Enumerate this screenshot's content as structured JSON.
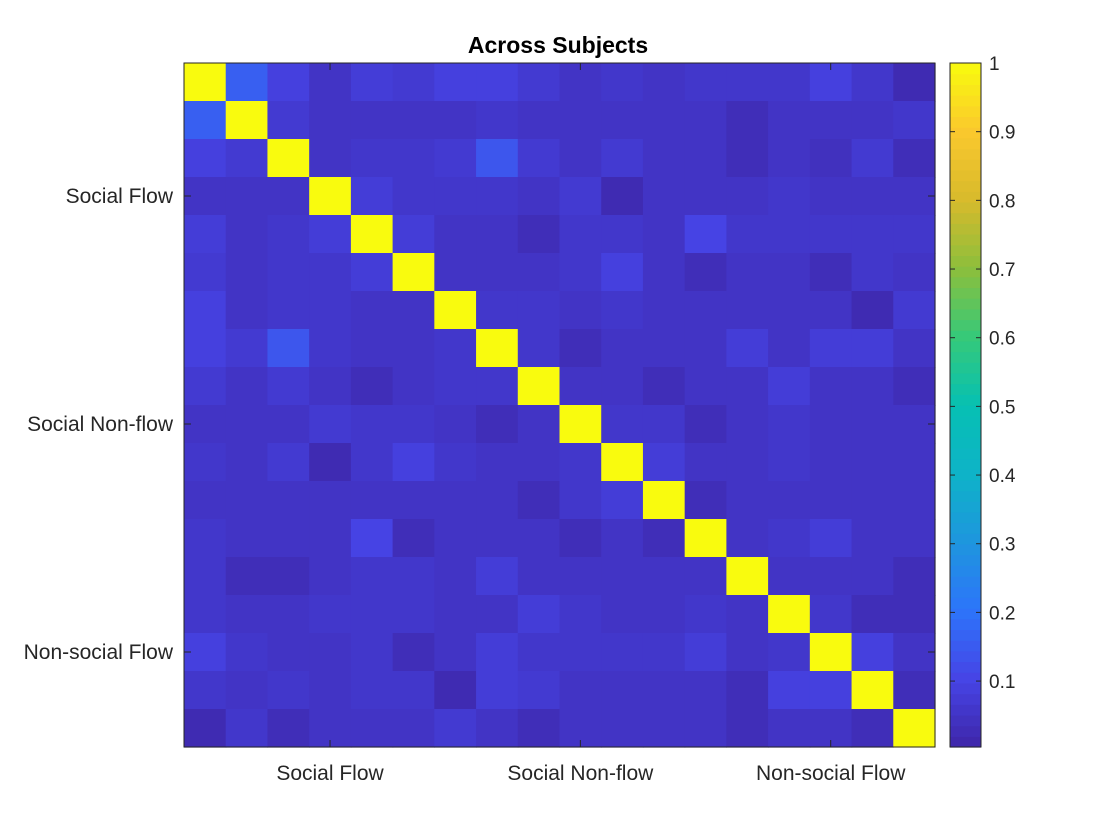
{
  "chart_data": {
    "type": "heatmap",
    "title": "Across Subjects",
    "n": 18,
    "x_tick_labels": [
      "Social Flow",
      "Social Non-flow",
      "Non-social Flow"
    ],
    "y_tick_labels": [
      "Social Flow",
      "Social Non-flow",
      "Non-social Flow"
    ],
    "tick_positions": [
      3.5,
      9.5,
      15.5
    ],
    "colormap": "parula",
    "clim": [
      0.004,
      1
    ],
    "colorbar_ticks": [
      0.1,
      0.2,
      0.3,
      0.4,
      0.5,
      0.6,
      0.7,
      0.8,
      0.9,
      1
    ],
    "colorbar_tick_labels": [
      "0.1",
      "0.2",
      "0.3",
      "0.4",
      "0.5",
      "0.6",
      "0.7",
      "0.8",
      "0.9",
      "1"
    ],
    "values": [
      [
        1.0,
        0.16,
        0.09,
        0.05,
        0.08,
        0.07,
        0.09,
        0.09,
        0.07,
        0.05,
        0.06,
        0.05,
        0.06,
        0.06,
        0.06,
        0.09,
        0.06,
        0.02
      ],
      [
        0.16,
        1.0,
        0.07,
        0.05,
        0.05,
        0.05,
        0.05,
        0.06,
        0.05,
        0.05,
        0.05,
        0.05,
        0.05,
        0.03,
        0.05,
        0.05,
        0.05,
        0.06
      ],
      [
        0.09,
        0.07,
        1.0,
        0.05,
        0.06,
        0.06,
        0.07,
        0.14,
        0.07,
        0.05,
        0.07,
        0.05,
        0.05,
        0.03,
        0.05,
        0.04,
        0.07,
        0.03
      ],
      [
        0.05,
        0.05,
        0.05,
        1.0,
        0.08,
        0.06,
        0.06,
        0.06,
        0.05,
        0.07,
        0.02,
        0.05,
        0.05,
        0.05,
        0.06,
        0.05,
        0.05,
        0.05
      ],
      [
        0.08,
        0.05,
        0.06,
        0.08,
        1.0,
        0.08,
        0.05,
        0.05,
        0.03,
        0.06,
        0.06,
        0.05,
        0.1,
        0.06,
        0.06,
        0.06,
        0.06,
        0.06
      ],
      [
        0.07,
        0.05,
        0.06,
        0.06,
        0.08,
        1.0,
        0.05,
        0.05,
        0.05,
        0.06,
        0.09,
        0.05,
        0.03,
        0.05,
        0.05,
        0.03,
        0.06,
        0.05
      ],
      [
        0.09,
        0.05,
        0.06,
        0.06,
        0.05,
        0.05,
        1.0,
        0.06,
        0.06,
        0.05,
        0.06,
        0.05,
        0.05,
        0.05,
        0.05,
        0.05,
        0.02,
        0.07
      ],
      [
        0.09,
        0.07,
        0.14,
        0.06,
        0.05,
        0.05,
        0.06,
        1.0,
        0.06,
        0.03,
        0.05,
        0.05,
        0.05,
        0.08,
        0.05,
        0.08,
        0.08,
        0.05
      ],
      [
        0.07,
        0.05,
        0.07,
        0.05,
        0.03,
        0.05,
        0.06,
        0.06,
        1.0,
        0.05,
        0.05,
        0.03,
        0.05,
        0.05,
        0.08,
        0.05,
        0.05,
        0.03
      ],
      [
        0.05,
        0.05,
        0.05,
        0.07,
        0.06,
        0.06,
        0.05,
        0.03,
        0.05,
        1.0,
        0.06,
        0.06,
        0.03,
        0.05,
        0.06,
        0.05,
        0.05,
        0.05
      ],
      [
        0.06,
        0.05,
        0.07,
        0.02,
        0.06,
        0.09,
        0.06,
        0.05,
        0.05,
        0.06,
        1.0,
        0.08,
        0.05,
        0.05,
        0.06,
        0.05,
        0.05,
        0.05
      ],
      [
        0.05,
        0.05,
        0.05,
        0.05,
        0.05,
        0.05,
        0.05,
        0.05,
        0.03,
        0.06,
        0.08,
        1.0,
        0.03,
        0.05,
        0.05,
        0.05,
        0.05,
        0.05
      ],
      [
        0.06,
        0.05,
        0.05,
        0.05,
        0.1,
        0.03,
        0.05,
        0.05,
        0.05,
        0.03,
        0.05,
        0.03,
        1.0,
        0.05,
        0.06,
        0.08,
        0.05,
        0.05
      ],
      [
        0.06,
        0.03,
        0.03,
        0.05,
        0.06,
        0.06,
        0.05,
        0.08,
        0.05,
        0.05,
        0.05,
        0.05,
        0.05,
        1.0,
        0.05,
        0.05,
        0.05,
        0.03
      ],
      [
        0.06,
        0.05,
        0.05,
        0.06,
        0.06,
        0.06,
        0.05,
        0.05,
        0.08,
        0.06,
        0.05,
        0.05,
        0.06,
        0.05,
        1.0,
        0.06,
        0.03,
        0.03
      ],
      [
        0.09,
        0.06,
        0.05,
        0.05,
        0.06,
        0.03,
        0.05,
        0.08,
        0.06,
        0.06,
        0.06,
        0.06,
        0.08,
        0.05,
        0.06,
        1.0,
        0.09,
        0.05
      ],
      [
        0.06,
        0.05,
        0.06,
        0.05,
        0.06,
        0.06,
        0.02,
        0.08,
        0.07,
        0.05,
        0.05,
        0.05,
        0.05,
        0.03,
        0.09,
        0.09,
        1.0,
        0.03
      ],
      [
        0.02,
        0.06,
        0.03,
        0.05,
        0.05,
        0.05,
        0.07,
        0.05,
        0.03,
        0.05,
        0.05,
        0.05,
        0.05,
        0.03,
        0.05,
        0.05,
        0.03,
        1.0
      ]
    ]
  }
}
